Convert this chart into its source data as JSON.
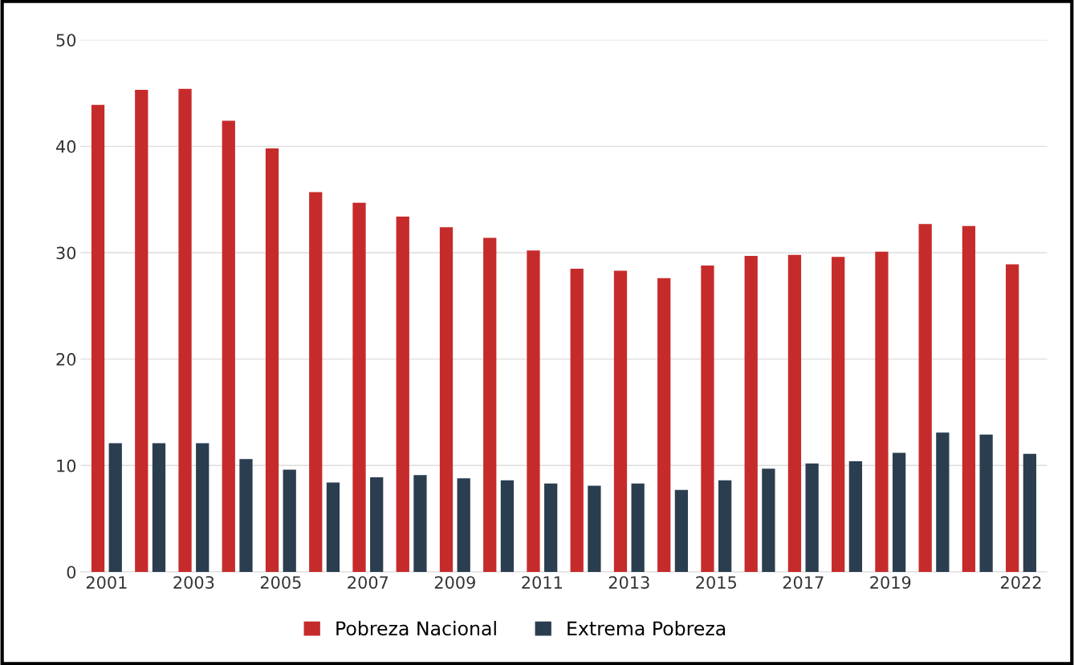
{
  "chart_data": {
    "type": "bar",
    "categories": [
      "2001",
      null,
      "2003",
      null,
      "2005",
      null,
      "2007",
      null,
      "2009",
      null,
      "2011",
      null,
      "2013",
      null,
      "2015",
      null,
      "2017",
      null,
      "2019",
      null,
      null,
      "2022"
    ],
    "series": [
      {
        "name": "Pobreza Nacional",
        "color": "#c62b2b",
        "values": [
          43.9,
          45.3,
          45.4,
          42.4,
          39.8,
          35.7,
          34.7,
          33.4,
          32.4,
          31.4,
          30.2,
          28.5,
          28.3,
          27.6,
          28.8,
          29.7,
          29.8,
          29.6,
          30.1,
          32.7,
          32.5,
          28.9
        ]
      },
      {
        "name": "Extrema Pobreza",
        "color": "#2b3e50",
        "values": [
          12.1,
          12.1,
          12.1,
          10.6,
          9.6,
          8.4,
          8.9,
          9.1,
          8.8,
          8.6,
          8.3,
          8.1,
          8.3,
          7.7,
          8.6,
          9.7,
          10.2,
          10.4,
          11.2,
          13.1,
          12.9,
          11.1
        ]
      }
    ],
    "ylim": [
      0,
      50
    ],
    "yticks": [
      0,
      10,
      20,
      30,
      40,
      50
    ],
    "grid": "y",
    "legend": "bottom"
  }
}
